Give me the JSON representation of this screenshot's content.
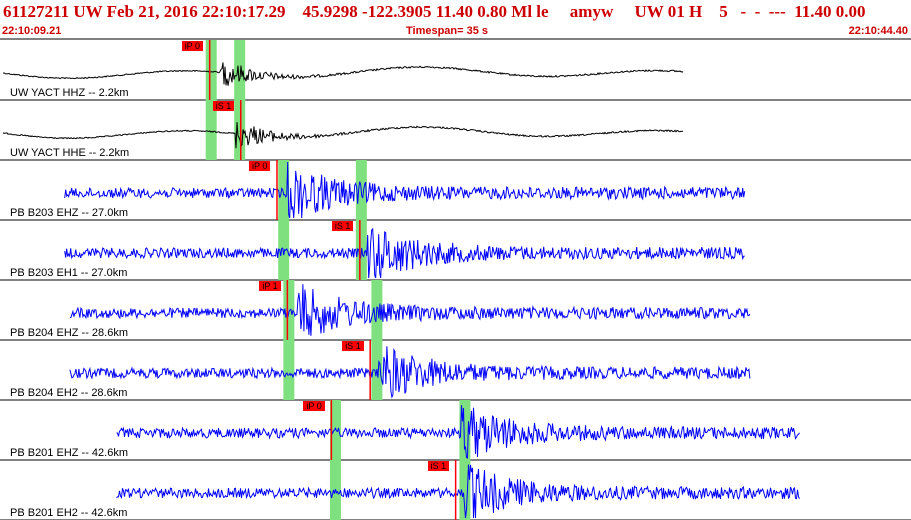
{
  "header": {
    "title": "61127211 UW Feb 21, 2016 22:10:17.29    45.9298 -122.3905 11.40 0.80 Ml le     amyw     UW 01 H    5   -  -  ---  11.40 0.00",
    "start_time": "22:10:09.21",
    "end_time": "22:10:44.40",
    "timespan": "Timespan=  35 s"
  },
  "colors": {
    "header_text": "#cc0000",
    "trace_black": "#000000",
    "trace_blue": "#0000ff",
    "pick_bg": "#ff0000",
    "pick_window": "#7fe07f"
  },
  "traces": [
    {
      "label": "UW YACT HHZ -- 2.2km",
      "color": "black",
      "p_pick": {
        "label": "iP 0",
        "time": 8.1
      },
      "s_pick": null,
      "windows": [
        8.1,
        9.2
      ],
      "data_start": 0.0,
      "data_end": 26.4,
      "quake_start": 8.5
    },
    {
      "label": "UW YACT HHE -- 2.2km",
      "color": "black",
      "p_pick": null,
      "s_pick": {
        "label": "iS 1",
        "time": 9.3
      },
      "windows": [
        8.1,
        9.2
      ],
      "data_start": 0.0,
      "data_end": 26.4,
      "quake_start": 9.1
    },
    {
      "label": "PB B203 EHZ -- 27.0km",
      "color": "blue",
      "p_pick": {
        "label": "iP 0",
        "time": 10.7
      },
      "s_pick": null,
      "windows": [
        10.9,
        13.9
      ],
      "data_start": 2.5,
      "data_end": 28.8,
      "quake_start": 11.1
    },
    {
      "label": "PB B203 EH1 -- 27.0km",
      "color": "blue",
      "p_pick": null,
      "s_pick": {
        "label": "iS 1",
        "time": 13.9
      },
      "windows": [
        10.9,
        13.9
      ],
      "data_start": 2.5,
      "data_end": 28.8,
      "quake_start": 14.2
    },
    {
      "label": "PB B204 EHZ -- 28.6km",
      "color": "blue",
      "p_pick": {
        "label": "iP 1",
        "time": 11.1
      },
      "s_pick": null,
      "windows": [
        11.1,
        14.5
      ],
      "data_start": 2.7,
      "data_end": 29.0,
      "quake_start": 11.4
    },
    {
      "label": "PB B204 EH2 -- 28.6km",
      "color": "blue",
      "p_pick": null,
      "s_pick": {
        "label": "iS 1",
        "time": 14.3
      },
      "windows": [
        11.1,
        14.5
      ],
      "data_start": 2.7,
      "data_end": 29.0,
      "quake_start": 14.6
    },
    {
      "label": "PB B201 EHZ -- 42.6km",
      "color": "blue",
      "p_pick": {
        "label": "iP 0",
        "time": 12.8
      },
      "s_pick": null,
      "windows": [
        12.9,
        17.9
      ],
      "data_start": 4.5,
      "data_end": 30.9,
      "quake_start": 17.8
    },
    {
      "label": "PB B201 EH2 -- 42.6km",
      "color": "blue",
      "p_pick": null,
      "s_pick": {
        "label": "iS 1",
        "time": 17.6
      },
      "windows": [
        12.9,
        17.9
      ],
      "data_start": 4.5,
      "data_end": 30.9,
      "quake_start": 17.9
    }
  ]
}
